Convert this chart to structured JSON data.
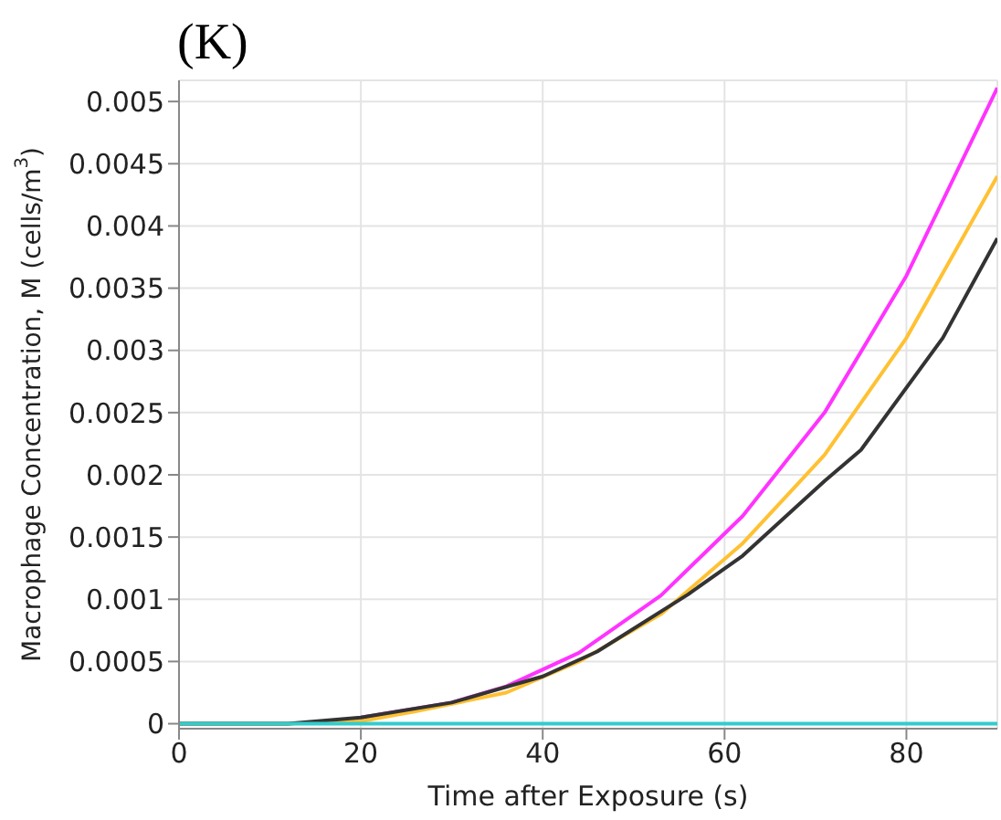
{
  "chart_data": {
    "type": "line",
    "title": "(K)",
    "xlabel": "Time after Exposure (s)",
    "ylabel": "Macrophage Concentration, M (cells/m$^{3}$)",
    "xlim": [
      0,
      90
    ],
    "xticks": [
      0,
      20,
      40,
      60,
      80
    ],
    "ylim": [
      -4e-05,
      0.00517
    ],
    "yticks": [
      0,
      0.0005,
      0.001,
      0.0015,
      0.002,
      0.0025,
      0.003,
      0.0035,
      0.004,
      0.0045,
      0.005
    ],
    "grid": true,
    "legend": false,
    "marker": "none",
    "line_style": "solid",
    "series": [
      {
        "color": "#ff33ff",
        "x": [
          20,
          30,
          36,
          44,
          53,
          62,
          71,
          80,
          90
        ],
        "values": [
          5e-05,
          0.00017,
          0.0003,
          0.00057,
          0.00103,
          0.00167,
          0.0025,
          0.0036,
          0.00511
        ]
      },
      {
        "color": "#ffc133",
        "x": [
          0,
          12,
          20,
          26,
          36,
          44,
          53,
          62,
          71,
          80,
          90
        ],
        "values": [
          0,
          0,
          2e-05,
          0.0001,
          0.00025,
          0.0005,
          0.00088,
          0.00145,
          0.00216,
          0.0031,
          0.0044
        ]
      },
      {
        "color": "#333333",
        "x": [
          0,
          12,
          20,
          30,
          40,
          46,
          56,
          62,
          71,
          75,
          84,
          90
        ],
        "values": [
          0,
          0,
          5e-05,
          0.00017,
          0.00038,
          0.00058,
          0.00104,
          0.00135,
          0.00195,
          0.0022,
          0.0031,
          0.0039
        ]
      },
      {
        "color": "#33cccc",
        "x": [
          0,
          90
        ],
        "values": [
          0,
          0
        ]
      }
    ]
  }
}
